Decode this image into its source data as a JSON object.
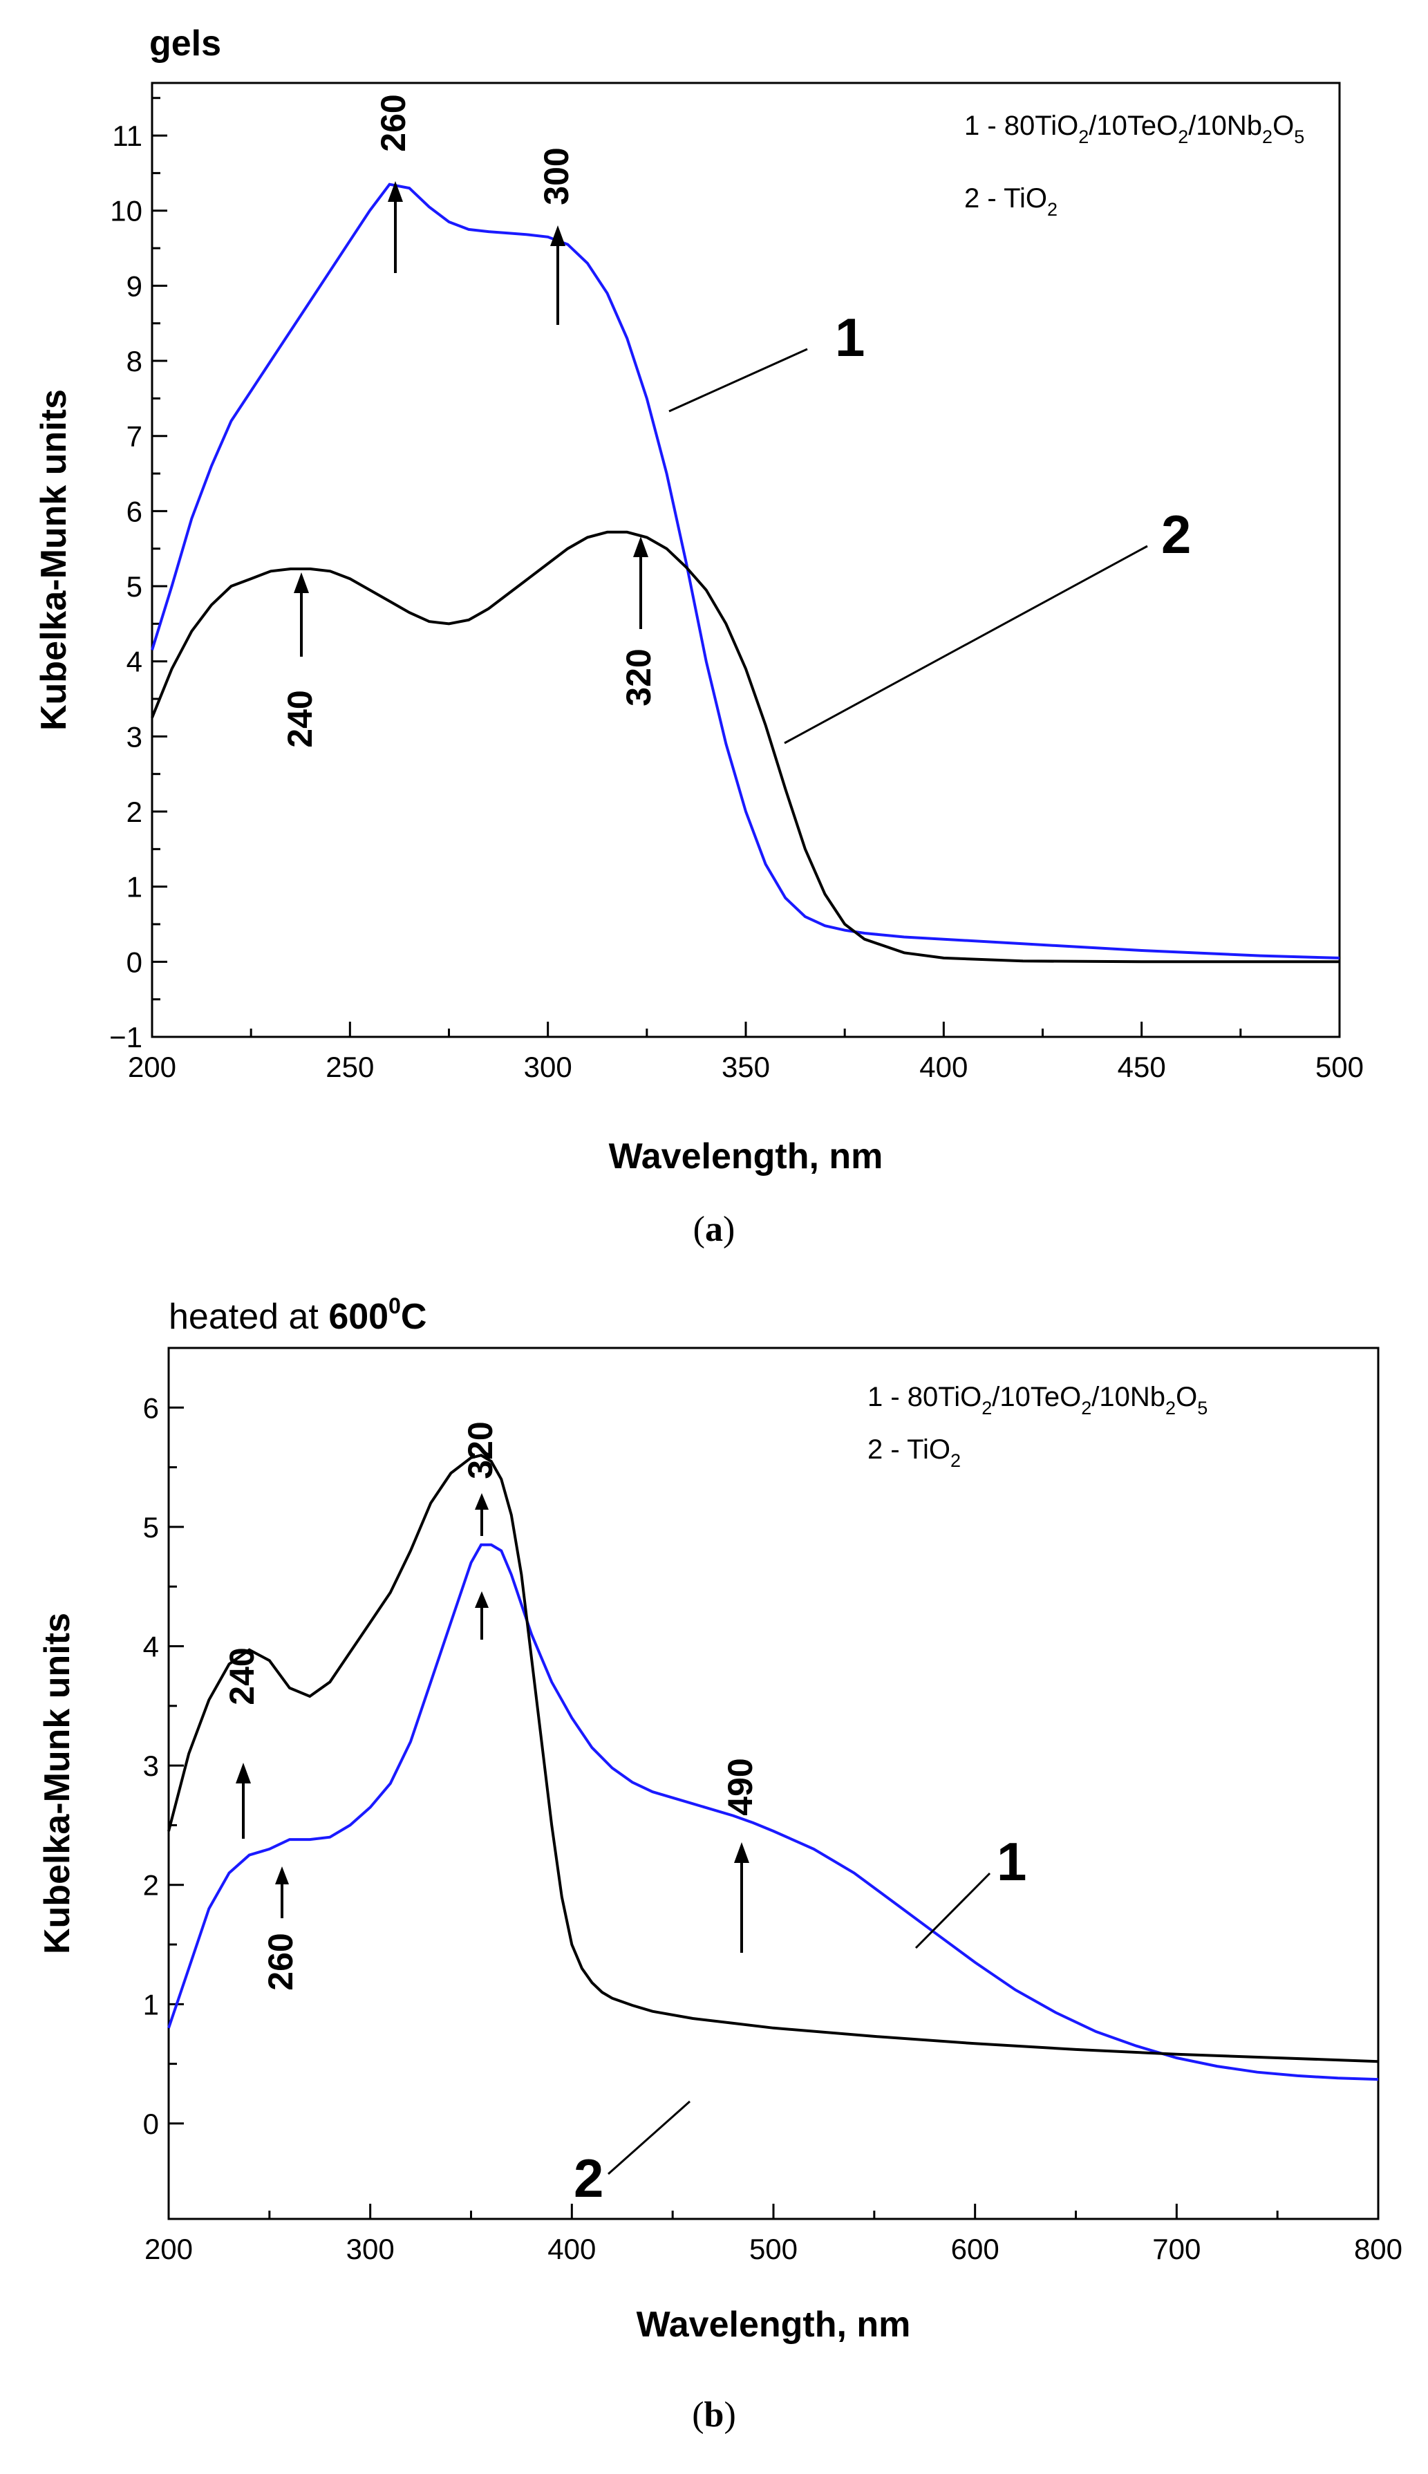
{
  "colors": {
    "series_1": "#1a1aff",
    "series_2": "#000000",
    "axes": "#000000"
  },
  "chart_data": [
    {
      "type": "line",
      "panel_label": "a",
      "title_prefix": "",
      "title_bold": "gels",
      "xlabel": "Wavelength, nm",
      "ylabel": "Kubelka-Munk units",
      "xlim": [
        200,
        500
      ],
      "ylim": [
        -1,
        11.7
      ],
      "x_ticks": [
        200,
        250,
        300,
        350,
        400,
        450,
        500
      ],
      "y_ticks": [
        -1,
        0,
        1,
        2,
        3,
        4,
        5,
        6,
        7,
        8,
        9,
        10,
        11
      ],
      "legend": {
        "position": "top-right",
        "entries": [
          {
            "number": "1",
            "label": "80TiO2/10TeO2/10Nb2O5"
          },
          {
            "number": "2",
            "label": "TiO2"
          }
        ]
      },
      "series": [
        {
          "name": "1 - 80TiO2/10TeO2/10Nb2O5",
          "color": "#1a1aff",
          "x": [
            200,
            205,
            210,
            215,
            220,
            225,
            230,
            235,
            240,
            245,
            250,
            255,
            260,
            265,
            270,
            275,
            280,
            285,
            290,
            295,
            300,
            305,
            310,
            315,
            320,
            325,
            330,
            335,
            340,
            345,
            350,
            355,
            360,
            365,
            370,
            375,
            380,
            390,
            400,
            420,
            450,
            480,
            500
          ],
          "y": [
            4.15,
            5.0,
            5.9,
            6.6,
            7.2,
            7.6,
            8.0,
            8.4,
            8.8,
            9.2,
            9.6,
            10.0,
            10.35,
            10.3,
            10.05,
            9.85,
            9.75,
            9.72,
            9.7,
            9.68,
            9.65,
            9.55,
            9.3,
            8.9,
            8.3,
            7.5,
            6.5,
            5.3,
            4.0,
            2.9,
            2.0,
            1.3,
            0.85,
            0.6,
            0.48,
            0.42,
            0.38,
            0.33,
            0.3,
            0.24,
            0.15,
            0.08,
            0.05
          ]
        },
        {
          "name": "2 - TiO2",
          "color": "#000000",
          "x": [
            200,
            205,
            210,
            215,
            220,
            225,
            230,
            235,
            240,
            245,
            250,
            255,
            260,
            265,
            270,
            275,
            280,
            285,
            290,
            295,
            300,
            305,
            310,
            315,
            320,
            325,
            330,
            335,
            340,
            345,
            350,
            355,
            360,
            365,
            370,
            375,
            380,
            390,
            400,
            420,
            450,
            480,
            500
          ],
          "y": [
            3.25,
            3.9,
            4.4,
            4.75,
            5.0,
            5.1,
            5.2,
            5.23,
            5.23,
            5.2,
            5.1,
            4.95,
            4.8,
            4.65,
            4.53,
            4.5,
            4.55,
            4.7,
            4.9,
            5.1,
            5.3,
            5.5,
            5.65,
            5.72,
            5.72,
            5.65,
            5.5,
            5.25,
            4.95,
            4.5,
            3.9,
            3.15,
            2.3,
            1.5,
            0.9,
            0.5,
            0.3,
            0.12,
            0.05,
            0.01,
            0.0,
            0.0,
            0.0
          ]
        }
      ],
      "annotations": [
        {
          "text": "260",
          "at_x": 260
        },
        {
          "text": "300",
          "at_x": 302
        },
        {
          "text": "240",
          "at_x": 240
        },
        {
          "text": "320",
          "at_x": 322
        }
      ],
      "series_labels": [
        "1",
        "2"
      ]
    },
    {
      "type": "line",
      "panel_label": "b",
      "title_prefix": "heated at ",
      "title_bold": "600",
      "title_superscript": "0",
      "title_suffix": "C",
      "xlabel": "Wavelength, nm",
      "ylabel": "Kubelka-Munk units",
      "xlim": [
        200,
        800
      ],
      "ylim": [
        -0.8,
        6.5
      ],
      "x_ticks": [
        200,
        300,
        400,
        500,
        600,
        700,
        800
      ],
      "y_ticks": [
        0,
        1,
        2,
        3,
        4,
        5,
        6
      ],
      "legend": {
        "position": "top-right",
        "entries": [
          {
            "number": "1",
            "label": "80TiO2/10TeO2/10Nb2O5"
          },
          {
            "number": "2",
            "label": "TiO2"
          }
        ]
      },
      "series": [
        {
          "name": "1 - 80TiO2/10TeO2/10Nb2O5",
          "color": "#1a1aff",
          "x": [
            200,
            210,
            220,
            230,
            240,
            250,
            260,
            270,
            280,
            290,
            300,
            310,
            320,
            330,
            340,
            350,
            355,
            360,
            365,
            370,
            375,
            380,
            385,
            390,
            395,
            400,
            410,
            420,
            430,
            440,
            460,
            480,
            490,
            500,
            520,
            540,
            560,
            580,
            600,
            620,
            640,
            660,
            680,
            700,
            720,
            740,
            760,
            780,
            800
          ],
          "y": [
            0.8,
            1.3,
            1.8,
            2.1,
            2.25,
            2.3,
            2.38,
            2.38,
            2.4,
            2.5,
            2.65,
            2.85,
            3.2,
            3.7,
            4.2,
            4.7,
            4.85,
            4.85,
            4.8,
            4.6,
            4.35,
            4.1,
            3.9,
            3.7,
            3.55,
            3.4,
            3.15,
            2.98,
            2.86,
            2.78,
            2.68,
            2.58,
            2.52,
            2.45,
            2.3,
            2.1,
            1.85,
            1.6,
            1.35,
            1.12,
            0.93,
            0.77,
            0.65,
            0.55,
            0.48,
            0.43,
            0.4,
            0.38,
            0.37
          ]
        },
        {
          "name": "2 - TiO2",
          "color": "#000000",
          "x": [
            200,
            210,
            220,
            230,
            240,
            250,
            260,
            270,
            280,
            290,
            300,
            310,
            320,
            330,
            340,
            350,
            355,
            360,
            365,
            370,
            375,
            380,
            385,
            390,
            395,
            400,
            405,
            410,
            415,
            420,
            430,
            440,
            460,
            480,
            500,
            550,
            600,
            650,
            700,
            750,
            800
          ],
          "y": [
            2.45,
            3.1,
            3.55,
            3.85,
            3.97,
            3.88,
            3.65,
            3.58,
            3.7,
            3.95,
            4.2,
            4.45,
            4.8,
            5.2,
            5.45,
            5.58,
            5.6,
            5.55,
            5.4,
            5.1,
            4.6,
            3.9,
            3.2,
            2.5,
            1.9,
            1.5,
            1.3,
            1.18,
            1.1,
            1.05,
            0.99,
            0.94,
            0.88,
            0.84,
            0.8,
            0.73,
            0.67,
            0.62,
            0.58,
            0.55,
            0.52
          ]
        }
      ],
      "annotations": [
        {
          "text": "240",
          "at_x": 238
        },
        {
          "text": "320",
          "at_x": 357
        },
        {
          "text": "490",
          "at_x": 488
        },
        {
          "text": "260",
          "at_x": 257
        }
      ],
      "series_labels": [
        "1",
        "2"
      ]
    }
  ]
}
